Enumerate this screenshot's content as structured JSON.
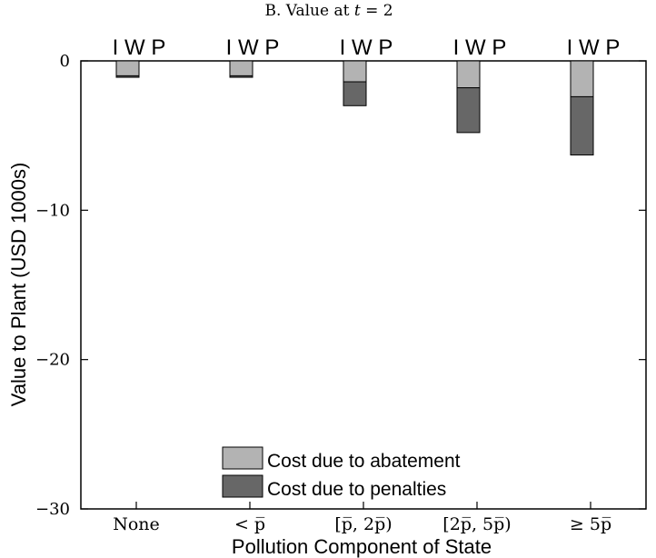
{
  "chart_data": {
    "type": "bar",
    "stacked": true,
    "title": "B. Value at t = 2",
    "xlabel": "Pollution Component of State",
    "ylabel": "Value to Plant (USD 1000s)",
    "categories": [
      "None",
      "< p̅",
      "[p̅, 2p̅)",
      "[2p̅, 5p̅)",
      "≥ 5p̅"
    ],
    "group_label": "I W P",
    "ylim": [
      -30,
      0
    ],
    "yticks": [
      0,
      -10,
      -20,
      -30
    ],
    "ytick_labels": [
      "0",
      "−10",
      "−20",
      "−30"
    ],
    "series": [
      {
        "name": "Cost due to abatement",
        "color": "#b3b3b3",
        "values": [
          -1.0,
          -1.0,
          -1.4,
          -1.8,
          -2.4
        ]
      },
      {
        "name": "Cost due to penalties",
        "color": "#676767",
        "values": [
          -0.1,
          -0.1,
          -1.6,
          -3.0,
          -3.9
        ]
      }
    ],
    "legend_position": "bottom-center"
  }
}
